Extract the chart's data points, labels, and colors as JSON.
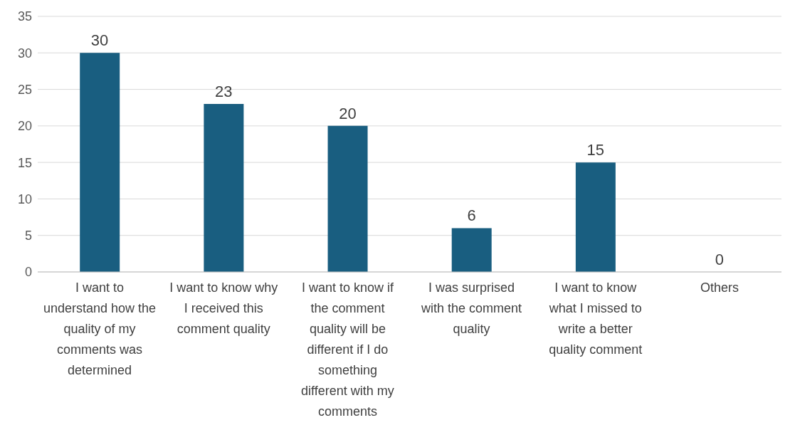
{
  "chart_data": {
    "type": "bar",
    "categories": [
      "I want to understand how the quality of my comments was determined",
      "I want to know why I received this comment quality",
      "I want to know if the comment quality will be different if I do something different with my comments",
      "I was surprised with the comment quality",
      "I want to know what I missed to write a better quality comment",
      "Others"
    ],
    "values": [
      30,
      23,
      20,
      6,
      15,
      0
    ],
    "color": "#195e80",
    "ylim": [
      0,
      35
    ],
    "yticks": [
      0,
      5,
      10,
      15,
      20,
      25,
      30,
      35
    ],
    "grid": "y",
    "data_labels": true
  }
}
